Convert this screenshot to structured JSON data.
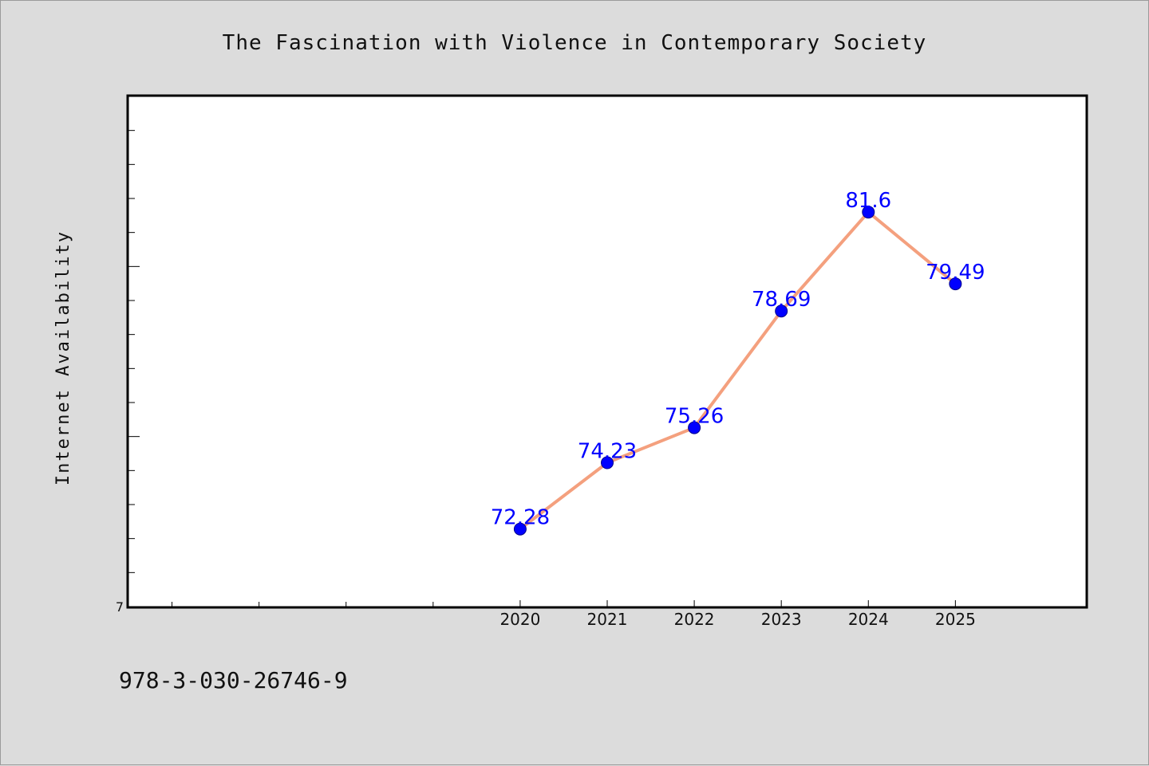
{
  "title": "The Fascination with Violence in Contemporary Society",
  "footer_text": "978-3-030-26746-9",
  "colors": {
    "background": "#dcdcdc",
    "plot_background": "#ffffff",
    "line": "#f4a07e",
    "marker": "#0000ff",
    "data_label": "#0000ff"
  },
  "chart_data": {
    "type": "line",
    "title": "The Fascination with Violence in Contemporary Society",
    "xlabel": "",
    "ylabel": "Internet Availability",
    "x": [
      "2020",
      "2021",
      "2022",
      "2023",
      "2024",
      "2025"
    ],
    "series": [
      {
        "values": [
          72.28,
          74.23,
          75.26,
          78.69,
          81.6,
          79.49
        ]
      }
    ],
    "data_labels": [
      "72.28",
      "74.23",
      "75.26",
      "78.69",
      "81.6",
      "79.49"
    ],
    "xlim": [
      2015.5,
      2026.5
    ],
    "ylim": [
      70,
      85
    ],
    "y_tick_labels": [
      {
        "value": 70,
        "label": "7"
      }
    ],
    "grid": false,
    "legend": "none"
  }
}
